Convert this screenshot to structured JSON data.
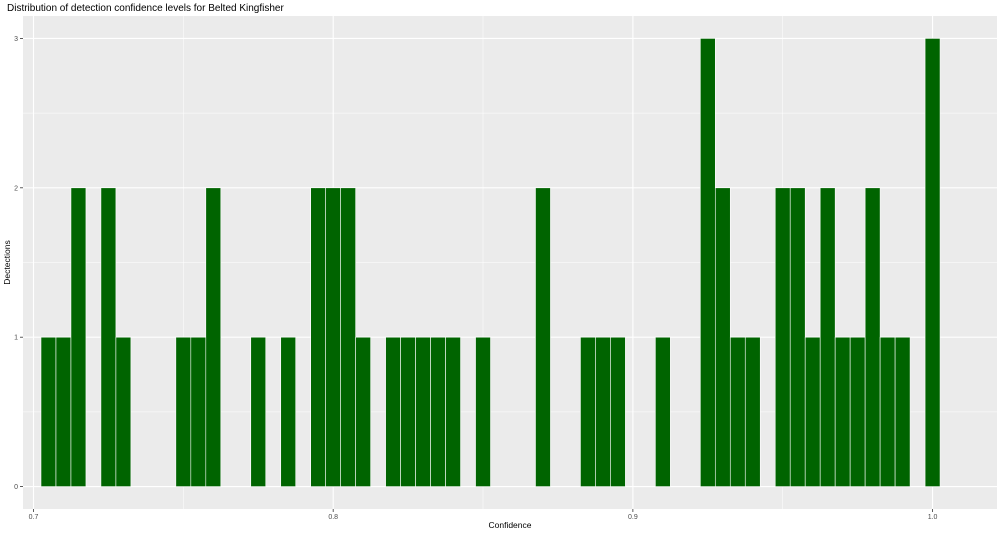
{
  "chart_data": {
    "type": "bar",
    "title": "Distribution of detection confidence levels for Belted Kingfisher",
    "xlabel": "Confidence",
    "ylabel": "Dectections",
    "xlim": [
      0.6965,
      1.0215
    ],
    "ylim": [
      -0.15,
      3.15
    ],
    "x_ticks": [
      {
        "value": 0.7,
        "label": "0.7"
      },
      {
        "value": 0.8,
        "label": "0.8"
      },
      {
        "value": 0.9,
        "label": "0.9"
      },
      {
        "value": 1.0,
        "label": "1.0"
      }
    ],
    "y_ticks": [
      {
        "value": 0,
        "label": "0"
      },
      {
        "value": 1,
        "label": "1"
      },
      {
        "value": 2,
        "label": "2"
      },
      {
        "value": 3,
        "label": "3"
      }
    ],
    "bin_width": 0.005,
    "bins": [
      {
        "x": 0.705,
        "count": 1
      },
      {
        "x": 0.71,
        "count": 1
      },
      {
        "x": 0.715,
        "count": 2
      },
      {
        "x": 0.725,
        "count": 2
      },
      {
        "x": 0.73,
        "count": 1
      },
      {
        "x": 0.75,
        "count": 1
      },
      {
        "x": 0.755,
        "count": 1
      },
      {
        "x": 0.76,
        "count": 2
      },
      {
        "x": 0.775,
        "count": 1
      },
      {
        "x": 0.785,
        "count": 1
      },
      {
        "x": 0.795,
        "count": 2
      },
      {
        "x": 0.8,
        "count": 2
      },
      {
        "x": 0.805,
        "count": 2
      },
      {
        "x": 0.81,
        "count": 1
      },
      {
        "x": 0.82,
        "count": 1
      },
      {
        "x": 0.825,
        "count": 1
      },
      {
        "x": 0.83,
        "count": 1
      },
      {
        "x": 0.835,
        "count": 1
      },
      {
        "x": 0.84,
        "count": 1
      },
      {
        "x": 0.85,
        "count": 1
      },
      {
        "x": 0.87,
        "count": 2
      },
      {
        "x": 0.885,
        "count": 1
      },
      {
        "x": 0.89,
        "count": 1
      },
      {
        "x": 0.895,
        "count": 1
      },
      {
        "x": 0.91,
        "count": 1
      },
      {
        "x": 0.925,
        "count": 3
      },
      {
        "x": 0.93,
        "count": 2
      },
      {
        "x": 0.935,
        "count": 1
      },
      {
        "x": 0.94,
        "count": 1
      },
      {
        "x": 0.95,
        "count": 2
      },
      {
        "x": 0.955,
        "count": 2
      },
      {
        "x": 0.96,
        "count": 1
      },
      {
        "x": 0.965,
        "count": 2
      },
      {
        "x": 0.97,
        "count": 1
      },
      {
        "x": 0.975,
        "count": 1
      },
      {
        "x": 0.98,
        "count": 2
      },
      {
        "x": 0.985,
        "count": 1
      },
      {
        "x": 0.99,
        "count": 1
      },
      {
        "x": 1.0,
        "count": 3
      }
    ],
    "grid": true,
    "legend": "none",
    "colors": {
      "bar_fill": "#006400",
      "bar_outline": "#ffffff",
      "panel_background": "#ebebeb",
      "grid_major": "#ffffff"
    }
  }
}
